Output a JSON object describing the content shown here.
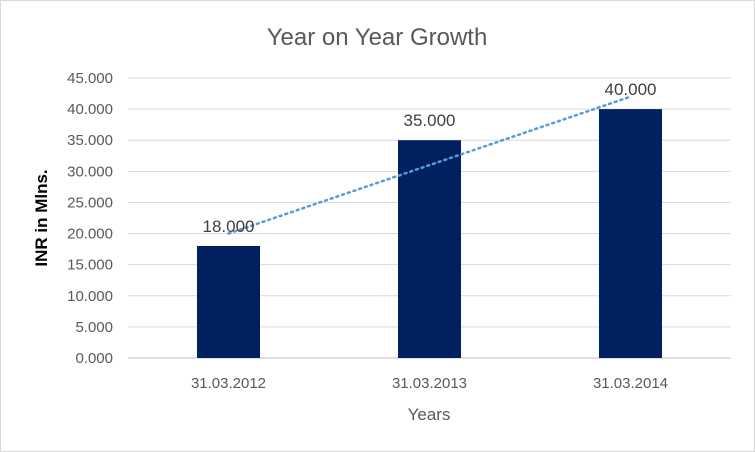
{
  "chart_data": {
    "type": "bar",
    "title": "Year on Year Growth",
    "xlabel": "Years",
    "ylabel": "INR in Mlns.",
    "categories": [
      "31.03.2012",
      "31.03.2013",
      "31.03.2014"
    ],
    "values": [
      18,
      35,
      40
    ],
    "data_labels": [
      "18.000",
      "35.000",
      "40.000"
    ],
    "ylim": [
      0,
      45
    ],
    "yticks": [
      "0.000",
      "5.000",
      "10.000",
      "15.000",
      "20.000",
      "25.000",
      "30.000",
      "35.000",
      "40.000",
      "45.000"
    ],
    "grid": true,
    "trendline": {
      "type": "linear",
      "style": "dotted",
      "color": "#5b9bd5"
    },
    "colors": {
      "bar": "#002060"
    }
  }
}
